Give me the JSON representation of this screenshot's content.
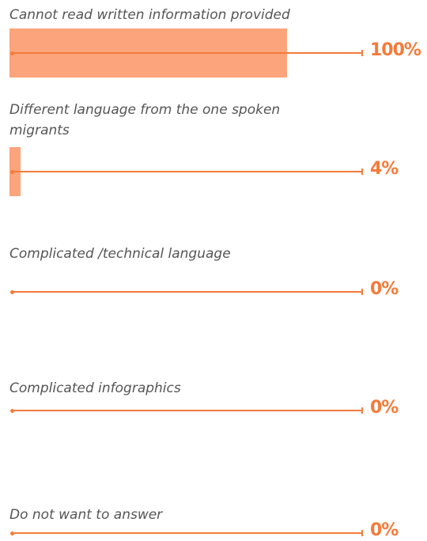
{
  "chart_data": {
    "type": "bar",
    "orientation": "horizontal",
    "categories": [
      "Cannot read written information provided",
      "Different language from the one spoken migrants",
      "Complicated /technical language",
      "Complicated infographics",
      "Do not want to answer"
    ],
    "values": [
      100,
      4,
      0,
      0,
      0
    ],
    "value_labels": [
      "100%",
      "4%",
      "0%",
      "0%",
      "0%"
    ],
    "color": "#fca47c",
    "xlim": [
      0,
      100
    ]
  }
}
